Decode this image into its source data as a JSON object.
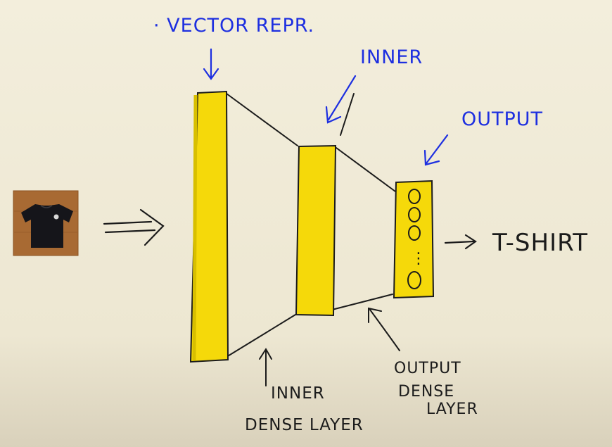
{
  "diagram": {
    "labels": {
      "vector_repr": "· VECTOR REPR.",
      "inner": "INNER",
      "output": "OUTPUT",
      "output_class": "T-SHIRT",
      "inner_dense_line1": "INNER",
      "inner_dense_line2": "DENSE LAYER",
      "output_dense_line1": "OUTPUT",
      "output_dense_line2": "DENSE",
      "output_dense_line3": "LAYER"
    },
    "output_nodes_dots": "⋮",
    "colors": {
      "paper": "#f1ecd9",
      "layer_fill": "#f5d90a",
      "ink_blue": "#1d2fe0",
      "ink_black": "#1b1b1b"
    }
  }
}
